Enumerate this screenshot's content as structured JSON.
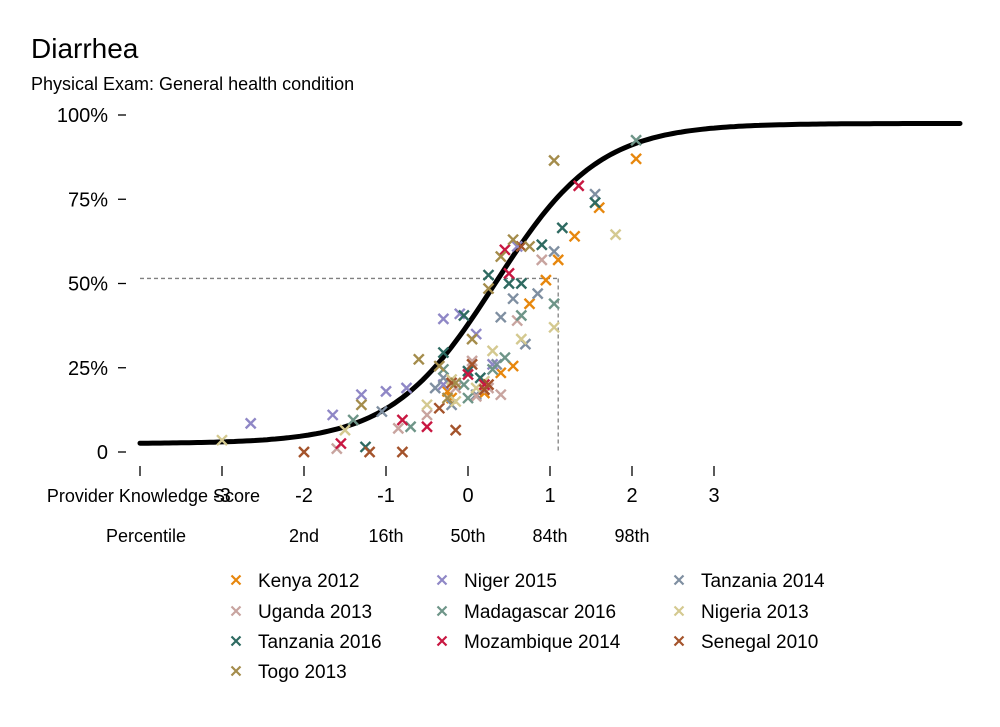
{
  "chart_data": {
    "type": "scatter",
    "title": "Diarrhea",
    "subtitle": "Physical Exam: General health condition",
    "xlabel": "Provider Knowledge Score",
    "xlabel2": "Percentile",
    "xlim": [
      -4,
      6
    ],
    "ylim": [
      0,
      100
    ],
    "x_ticks": [
      -4,
      -3,
      -2,
      -1,
      0,
      1,
      2,
      3
    ],
    "x_tick_labels": [
      "",
      "-3",
      "-2",
      "-1",
      "0",
      "1",
      "2",
      "3"
    ],
    "percentile_ticks": [
      {
        "x": -2,
        "label": "2nd"
      },
      {
        "x": -1,
        "label": "16th"
      },
      {
        "x": 0,
        "label": "50th"
      },
      {
        "x": 1,
        "label": "84th"
      },
      {
        "x": 2,
        "label": "98th"
      }
    ],
    "y_ticks": [
      0,
      25,
      50,
      75,
      100
    ],
    "y_tick_labels": [
      "0",
      "25%",
      "50%",
      "75%",
      "100%"
    ],
    "curve": {
      "midpoint": 0.33,
      "slope": 1.58,
      "lower": 2.5,
      "upper": 97.5
    },
    "reference_line": {
      "x": 1.1,
      "y": 51.5
    },
    "legend": {
      "placement": "bottom",
      "columns": 3
    },
    "series": [
      {
        "name": "Kenya 2012",
        "color": "#E7870D",
        "points": [
          [
            2.05,
            87
          ],
          [
            1.6,
            72.5
          ],
          [
            1.3,
            64
          ],
          [
            1.1,
            57
          ],
          [
            0.95,
            51
          ],
          [
            0.75,
            44
          ],
          [
            0.55,
            25.5
          ],
          [
            0.4,
            23.5
          ],
          [
            0.2,
            17.5
          ],
          [
            -0.2,
            16
          ],
          [
            -0.25,
            18
          ]
        ]
      },
      {
        "name": "Niger 2015",
        "color": "#8F87C6",
        "points": [
          [
            -2.65,
            8.5
          ],
          [
            -1.65,
            11
          ],
          [
            -1.3,
            17
          ],
          [
            -1.0,
            18
          ],
          [
            -0.75,
            19
          ],
          [
            -0.3,
            20
          ],
          [
            -0.1,
            41
          ],
          [
            -0.3,
            39.5
          ],
          [
            0.1,
            35
          ],
          [
            0.6,
            61
          ],
          [
            0.3,
            26
          ]
        ]
      },
      {
        "name": "Tanzania 2014",
        "color": "#7F8FA1",
        "points": [
          [
            1.55,
            76.5
          ],
          [
            1.05,
            59.5
          ],
          [
            0.85,
            47
          ],
          [
            0.55,
            45.5
          ],
          [
            0.4,
            40
          ],
          [
            0.7,
            32
          ],
          [
            0.35,
            26
          ],
          [
            0.1,
            17
          ],
          [
            -0.4,
            19
          ],
          [
            -0.2,
            14
          ],
          [
            -1.05,
            12
          ],
          [
            -0.3,
            22
          ]
        ]
      },
      {
        "name": "Uganda 2013",
        "color": "#C8A49F",
        "points": [
          [
            -1.6,
            1
          ],
          [
            -0.85,
            7
          ],
          [
            -0.5,
            11
          ],
          [
            0.1,
            16.5
          ],
          [
            0.4,
            17
          ],
          [
            0.6,
            39
          ],
          [
            0.9,
            57
          ],
          [
            0.05,
            27
          ],
          [
            0.25,
            19
          ],
          [
            -0.15,
            19
          ]
        ]
      },
      {
        "name": "Madagascar 2016",
        "color": "#6E9588",
        "points": [
          [
            2.05,
            92.5
          ],
          [
            1.05,
            44
          ],
          [
            0.65,
            40.5
          ],
          [
            0.45,
            28
          ],
          [
            0.3,
            24.5
          ],
          [
            -0.3,
            24.5
          ],
          [
            0.0,
            16
          ],
          [
            -0.7,
            7.5
          ],
          [
            -1.4,
            9.5
          ],
          [
            -0.05,
            20
          ]
        ]
      },
      {
        "name": "Nigeria 2013",
        "color": "#D4C990",
        "points": [
          [
            -3.0,
            3.5
          ],
          [
            -1.5,
            6.5
          ],
          [
            -0.5,
            14
          ],
          [
            -0.15,
            15
          ],
          [
            0.1,
            19
          ],
          [
            0.3,
            30
          ],
          [
            0.65,
            33.5
          ],
          [
            1.05,
            37
          ],
          [
            1.8,
            64.5
          ],
          [
            -0.2,
            21.5
          ],
          [
            0.2,
            21
          ]
        ]
      },
      {
        "name": "Tanzania 2016",
        "color": "#2E6A61",
        "points": [
          [
            1.55,
            74
          ],
          [
            1.15,
            66.5
          ],
          [
            0.9,
            61.5
          ],
          [
            0.65,
            50
          ],
          [
            0.5,
            50
          ],
          [
            0.25,
            52.5
          ],
          [
            -0.05,
            40.5
          ],
          [
            -0.3,
            29.5
          ],
          [
            -1.25,
            1.5
          ],
          [
            0.0,
            24
          ],
          [
            0.15,
            22
          ]
        ]
      },
      {
        "name": "Mozambique 2014",
        "color": "#C81741",
        "points": [
          [
            1.35,
            79
          ],
          [
            0.5,
            53
          ],
          [
            0.45,
            60
          ],
          [
            0.0,
            23
          ],
          [
            -0.8,
            9.5
          ],
          [
            -1.55,
            2.5
          ],
          [
            -0.5,
            7.5
          ],
          [
            0.2,
            20
          ]
        ]
      },
      {
        "name": "Senegal 2010",
        "color": "#A4532B",
        "points": [
          [
            -2.0,
            0
          ],
          [
            -1.2,
            0
          ],
          [
            -0.8,
            0
          ],
          [
            -0.15,
            6.5
          ],
          [
            -0.2,
            20.5
          ],
          [
            0.05,
            26
          ],
          [
            0.25,
            20
          ],
          [
            -0.35,
            13
          ],
          [
            0.65,
            61
          ],
          [
            0.2,
            18.5
          ]
        ]
      },
      {
        "name": "Togo 2013",
        "color": "#A48C4B",
        "points": [
          [
            1.05,
            86.5
          ],
          [
            0.55,
            63
          ],
          [
            0.4,
            58
          ],
          [
            0.75,
            61
          ],
          [
            0.25,
            48.5
          ],
          [
            -0.6,
            27.5
          ],
          [
            -0.35,
            25.5
          ],
          [
            -1.3,
            14
          ],
          [
            -0.25,
            16
          ],
          [
            0.05,
            33.5
          ],
          [
            -0.15,
            20.5
          ]
        ]
      }
    ]
  }
}
